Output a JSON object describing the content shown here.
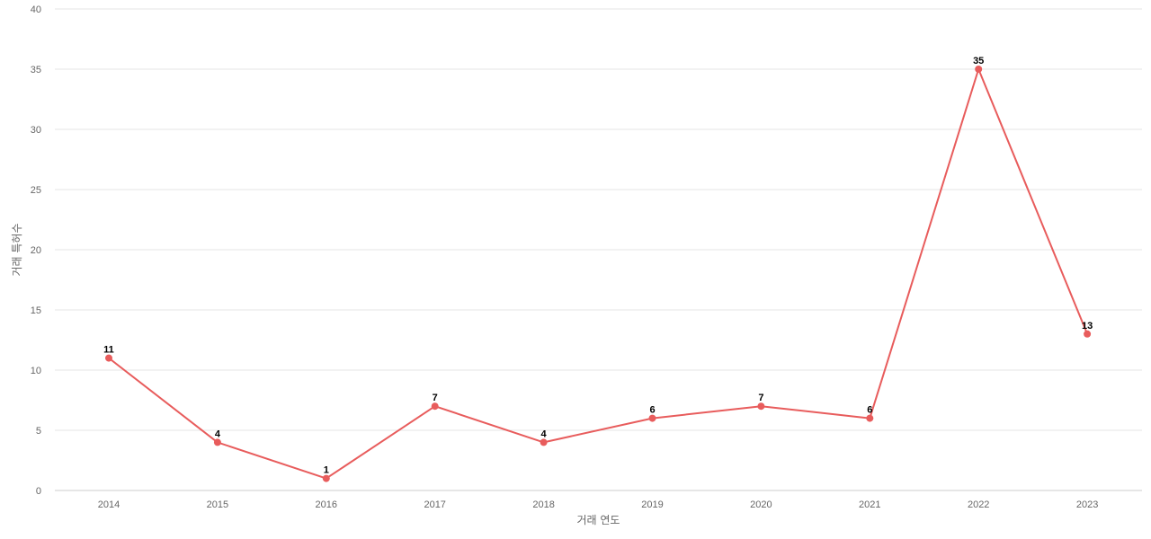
{
  "chart_data": {
    "type": "line",
    "x": [
      "2014",
      "2015",
      "2016",
      "2017",
      "2018",
      "2019",
      "2020",
      "2021",
      "2022",
      "2023"
    ],
    "series": [
      {
        "values": [
          11,
          4,
          1,
          7,
          4,
          6,
          7,
          6,
          35,
          13
        ],
        "color": "#e85c5c"
      }
    ],
    "xlabel": "거래 연도",
    "ylabel": "거래 특허수",
    "ylim": [
      0,
      40
    ],
    "yticks": [
      0,
      5,
      10,
      15,
      20,
      25,
      30,
      35,
      40
    ],
    "grid": true,
    "data_labels": true
  }
}
